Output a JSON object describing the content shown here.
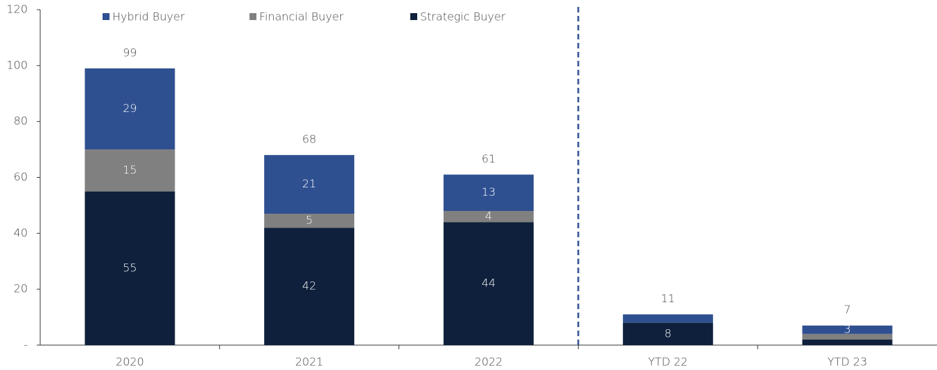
{
  "chart_data": {
    "type": "stacked_bar",
    "categories": [
      "2020",
      "2021",
      "2022",
      "YTD 22",
      "YTD 23"
    ],
    "series": [
      {
        "name": "Strategic Buyer",
        "color": "#0e203b",
        "values": [
          55,
          42,
          44,
          8,
          2
        ],
        "value_labels": [
          "55",
          "42",
          "44",
          "8",
          null
        ]
      },
      {
        "name": "Financial Buyer",
        "color": "#808080",
        "values": [
          15,
          5,
          4,
          0,
          2
        ],
        "value_labels": [
          "15",
          "5",
          "4",
          null,
          null
        ]
      },
      {
        "name": "Hybrid Buyer",
        "color": "#2f5090",
        "values": [
          29,
          21,
          13,
          3,
          3
        ],
        "value_labels": [
          "29",
          "21",
          "13",
          null,
          "3"
        ]
      }
    ],
    "totals": [
      99,
      68,
      61,
      11,
      7
    ],
    "legend_order": [
      2,
      1,
      0
    ],
    "ylim": [
      0,
      120
    ],
    "yticks": [
      {
        "value": 0,
        "label": "-"
      },
      20,
      40,
      60,
      80,
      100,
      120
    ]
  }
}
